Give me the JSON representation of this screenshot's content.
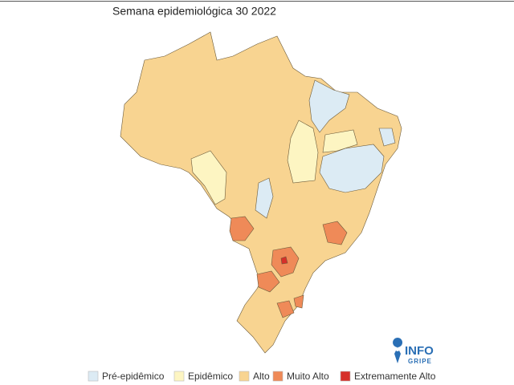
{
  "title": "Semana epidemiológica 30 2022",
  "legend": {
    "items": [
      {
        "label": "Pré-epidêmico",
        "color": "#dcebf4"
      },
      {
        "label": "Epidêmico",
        "color": "#fdf5c2"
      },
      {
        "label": "Alto",
        "color": "#f8d491"
      },
      {
        "label": "Muito Alto",
        "color": "#ef8a58"
      },
      {
        "label": "Extremamente Alto",
        "color": "#d6302a"
      }
    ]
  },
  "logo": {
    "top": "INFO",
    "bottom": "GRIPE"
  }
}
